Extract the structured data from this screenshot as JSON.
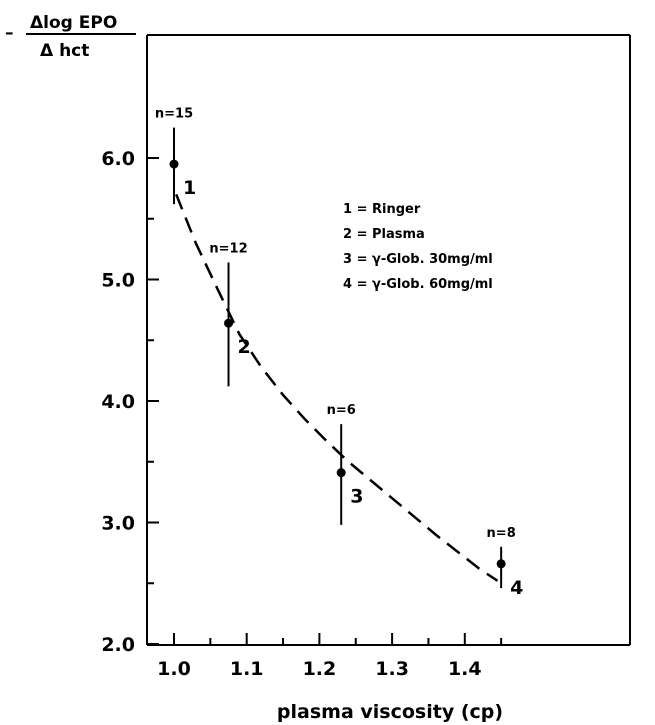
{
  "chart_data": {
    "type": "scatter",
    "title": "",
    "xlabel": "plasma viscosity (cp)",
    "ylabel_top": "Δlog EPO",
    "ylabel_bottom": "Δ hct",
    "ylabel_prefix": "–",
    "xlim": [
      0.97,
      1.48
    ],
    "ylim": [
      2.0,
      6.0
    ],
    "x_ticks": [
      1.0,
      1.1,
      1.2,
      1.3,
      1.4
    ],
    "x_tick_labels": [
      "1.0",
      "1.1",
      "1.2",
      "1.3",
      "1.4"
    ],
    "y_ticks": [
      2.0,
      3.0,
      4.0,
      5.0,
      6.0
    ],
    "y_tick_labels": [
      "2.0",
      "3.0",
      "4.0",
      "5.0",
      "6.0"
    ],
    "grid": false,
    "series": [
      {
        "points": [
          {
            "x": 1.0,
            "y": 5.95,
            "err_low": 5.62,
            "err_high": 6.25,
            "label": "1",
            "n_label": "n=15"
          },
          {
            "x": 1.075,
            "y": 4.64,
            "err_low": 4.12,
            "err_high": 5.14,
            "label": "2",
            "n_label": "n=12"
          },
          {
            "x": 1.23,
            "y": 3.41,
            "err_low": 2.98,
            "err_high": 3.81,
            "label": "3",
            "n_label": "n=6"
          },
          {
            "x": 1.45,
            "y": 2.66,
            "err_low": 2.46,
            "err_high": 2.8,
            "label": "4",
            "n_label": "n=8"
          }
        ]
      }
    ],
    "fit_curve": {
      "style": "dashed",
      "x": [
        1.003,
        1.03,
        1.06,
        1.09,
        1.12,
        1.15,
        1.18,
        1.21,
        1.24,
        1.27,
        1.3,
        1.33,
        1.36,
        1.39,
        1.42,
        1.445
      ],
      "y": [
        5.7,
        5.3,
        4.92,
        4.55,
        4.28,
        4.05,
        3.85,
        3.67,
        3.5,
        3.35,
        3.2,
        3.05,
        2.9,
        2.76,
        2.62,
        2.52
      ]
    },
    "legend": {
      "placement": "top-right",
      "entries": [
        "1 = Ringer",
        "2 = Plasma",
        "3 = γ-Glob. 30mg/ml",
        "4 = γ-Glob. 60mg/ml"
      ]
    }
  }
}
